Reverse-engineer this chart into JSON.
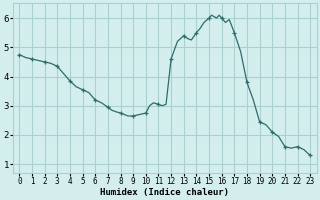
{
  "x": [
    0,
    0.5,
    1,
    1.5,
    2,
    2.5,
    3,
    3.5,
    4,
    4.5,
    5,
    5.5,
    6,
    6.5,
    7,
    7.3,
    7.6,
    8,
    8.3,
    8.6,
    9,
    9.5,
    10,
    10.3,
    10.6,
    11,
    11.3,
    11.6,
    12,
    12.5,
    13,
    13.3,
    13.6,
    14,
    14.3,
    14.6,
    15,
    15.2,
    15.4,
    15.6,
    15.8,
    16,
    16.3,
    16.6,
    17,
    17.5,
    18,
    18.5,
    19,
    19.5,
    20,
    20.5,
    21,
    21.5,
    22,
    22.5,
    23
  ],
  "y": [
    4.75,
    4.65,
    4.6,
    4.55,
    4.5,
    4.45,
    4.35,
    4.1,
    3.85,
    3.65,
    3.55,
    3.45,
    3.2,
    3.1,
    2.95,
    2.85,
    2.8,
    2.75,
    2.7,
    2.65,
    2.65,
    2.7,
    2.75,
    3.0,
    3.1,
    3.05,
    3.0,
    3.05,
    4.6,
    5.2,
    5.4,
    5.3,
    5.25,
    5.5,
    5.65,
    5.85,
    6.0,
    6.1,
    6.05,
    6.0,
    6.1,
    6.0,
    5.85,
    5.95,
    5.5,
    4.85,
    3.8,
    3.2,
    2.45,
    2.35,
    2.1,
    1.95,
    1.6,
    1.55,
    1.6,
    1.5,
    1.3
  ],
  "marker_x": [
    0,
    1,
    2,
    3,
    4,
    5,
    6,
    7,
    8,
    9,
    10,
    11,
    12,
    13,
    14,
    15,
    16,
    17,
    18,
    19,
    20,
    21,
    22,
    23
  ],
  "marker_y": [
    4.75,
    4.6,
    4.5,
    4.35,
    3.85,
    3.55,
    3.2,
    2.95,
    2.75,
    2.65,
    2.75,
    3.05,
    4.6,
    5.4,
    5.5,
    6.0,
    6.0,
    5.5,
    3.8,
    2.45,
    2.1,
    1.6,
    1.6,
    1.3
  ],
  "line_color": "#2e6b6b",
  "bg_color": "#d4eeee",
  "grid_color": "#aad0d0",
  "xlabel": "Humidex (Indice chaleur)",
  "ylim": [
    0.7,
    6.5
  ],
  "xlim": [
    -0.5,
    23.5
  ],
  "yticks": [
    1,
    2,
    3,
    4,
    5,
    6
  ],
  "xticks": [
    0,
    1,
    2,
    3,
    4,
    5,
    6,
    7,
    8,
    9,
    10,
    11,
    12,
    13,
    14,
    15,
    16,
    17,
    18,
    19,
    20,
    21,
    22,
    23
  ]
}
